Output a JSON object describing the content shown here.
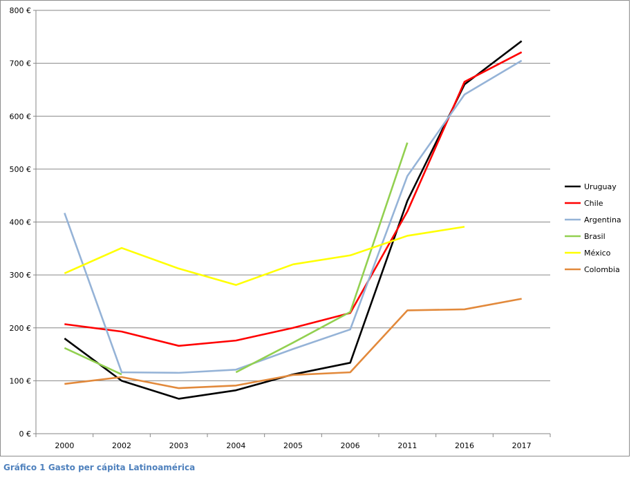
{
  "caption": "Gráfico 1 Gasto per cápita Latinoamérica",
  "chart_data": {
    "type": "line",
    "categories": [
      "2000",
      "2002",
      "2003",
      "2004",
      "2005",
      "2006",
      "2011",
      "2016",
      "2017"
    ],
    "ylim": [
      0,
      800
    ],
    "yticks": [
      {
        "value": 0,
        "label": "0 €"
      },
      {
        "value": 100,
        "label": "100 €"
      },
      {
        "value": 200,
        "label": "200 €"
      },
      {
        "value": 300,
        "label": "300 €"
      },
      {
        "value": 400,
        "label": "400 €"
      },
      {
        "value": 500,
        "label": "500 €"
      },
      {
        "value": 600,
        "label": "600 €"
      },
      {
        "value": 700,
        "label": "700 €"
      },
      {
        "value": 800,
        "label": "800 €"
      }
    ],
    "grid": true,
    "legend_position": "right",
    "series": [
      {
        "name": "Uruguay",
        "color": "#000000",
        "values": [
          180,
          100,
          66,
          82,
          112,
          134,
          440,
          660,
          742
        ]
      },
      {
        "name": "Chile",
        "color": "#ff0000",
        "values": [
          207,
          193,
          166,
          176,
          200,
          228,
          420,
          665,
          721
        ]
      },
      {
        "name": "Argentina",
        "color": "#95b3d7",
        "values": [
          417,
          116,
          115,
          121,
          160,
          197,
          487,
          641,
          705
        ]
      },
      {
        "name": "Brasil",
        "color": "#92d050",
        "values": [
          162,
          112,
          null,
          116,
          172,
          230,
          550,
          null,
          null
        ]
      },
      {
        "name": "México",
        "color": "#ffff00",
        "values": [
          303,
          351,
          312,
          281,
          320,
          337,
          374,
          391,
          null
        ]
      },
      {
        "name": "Colombia",
        "color": "#e2893b",
        "values": [
          94,
          107,
          86,
          91,
          111,
          116,
          233,
          235,
          255
        ]
      }
    ]
  }
}
